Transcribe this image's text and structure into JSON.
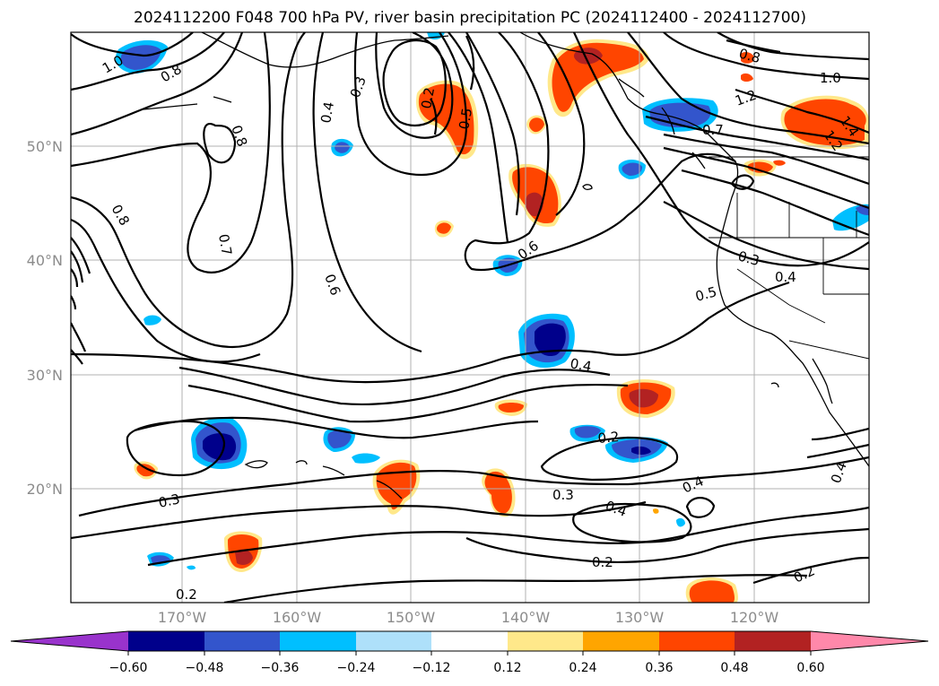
{
  "title": "2024112200 F048 700 hPa PV, river basin precipitation PC (2024112400 - 2024112700)",
  "lat_labels": [
    "50°N",
    "40°N",
    "30°N",
    "20°N"
  ],
  "lon_labels": [
    "170°W",
    "160°W",
    "150°W",
    "140°W",
    "130°W",
    "120°W"
  ],
  "colorbar": {
    "ticks": [
      "−0.60",
      "−0.48",
      "−0.36",
      "−0.24",
      "−0.12",
      "0.12",
      "0.24",
      "0.36",
      "0.48",
      "0.60"
    ],
    "colors": [
      "#9933cc",
      "#00008b",
      "#3355cc",
      "#00bfff",
      "#aee0fa",
      "#ffffff",
      "#ffe88a",
      "#ffa500",
      "#ff4500",
      "#b22222",
      "#ff88aa"
    ]
  },
  "contour_labels": [
    {
      "text": "1.0"
    },
    {
      "text": "0.8"
    },
    {
      "text": "0.8"
    },
    {
      "text": "0.8"
    },
    {
      "text": "0.7"
    },
    {
      "text": "0.6"
    },
    {
      "text": "0.4"
    },
    {
      "text": "0.3"
    },
    {
      "text": "0.2"
    },
    {
      "text": "0.5"
    },
    {
      "text": "0.8"
    },
    {
      "text": "1.0"
    },
    {
      "text": "1.2"
    },
    {
      "text": "0.7"
    },
    {
      "text": "1.4"
    },
    {
      "text": "1.2"
    },
    {
      "text": "0.6"
    },
    {
      "text": "0.3"
    },
    {
      "text": "0.4"
    },
    {
      "text": "0.5"
    },
    {
      "text": "0.4"
    },
    {
      "text": "0.2"
    },
    {
      "text": "0.3"
    },
    {
      "text": "0.4"
    },
    {
      "text": "0.4"
    },
    {
      "text": "0.2"
    },
    {
      "text": "0.4"
    },
    {
      "text": "0.2"
    },
    {
      "text": "0.3"
    },
    {
      "text": "0.2"
    }
  ]
}
